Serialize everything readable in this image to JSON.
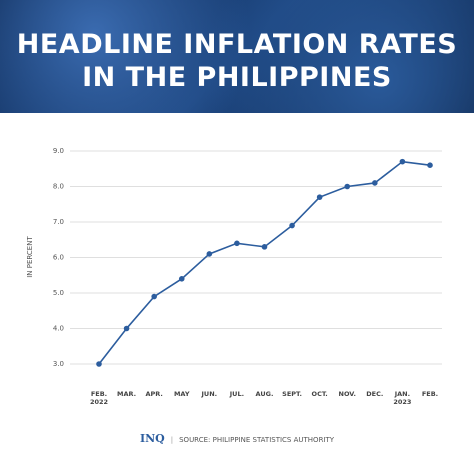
{
  "chart_data": {
    "type": "line",
    "title": "HEADLINE INFLATION RATES\nIN THE PHILIPPINES",
    "y_label": "IN PERCENT",
    "categories": [
      "FEB.\n2022",
      "MAR.",
      "APR.",
      "MAY",
      "JUN.",
      "JUL.",
      "AUG.",
      "SEPT.",
      "OCT.",
      "NOV.",
      "DEC.",
      "JAN.\n2023",
      "FEB."
    ],
    "series": [
      {
        "name": "Headline inflation rate",
        "color": "#2c5d9e",
        "values": [
          3.0,
          4.0,
          4.9,
          5.4,
          6.1,
          6.4,
          6.3,
          6.9,
          7.7,
          8.0,
          8.1,
          8.7,
          8.6
        ]
      }
    ],
    "ylim": [
      3.0,
      9.0
    ],
    "yticks": [
      {
        "value": 3,
        "label": "3.0"
      },
      {
        "value": 4,
        "label": "4.0"
      },
      {
        "value": 5,
        "label": "5.0"
      },
      {
        "value": 6,
        "label": "6.0"
      },
      {
        "value": 7,
        "label": "7.0"
      },
      {
        "value": 8,
        "label": "8.0"
      },
      {
        "value": 9,
        "label": "9.0"
      }
    ],
    "grid": true,
    "logo": "INQ",
    "source": "SOURCE: PHILIPPINE STATISTICS AUTHORITY"
  }
}
